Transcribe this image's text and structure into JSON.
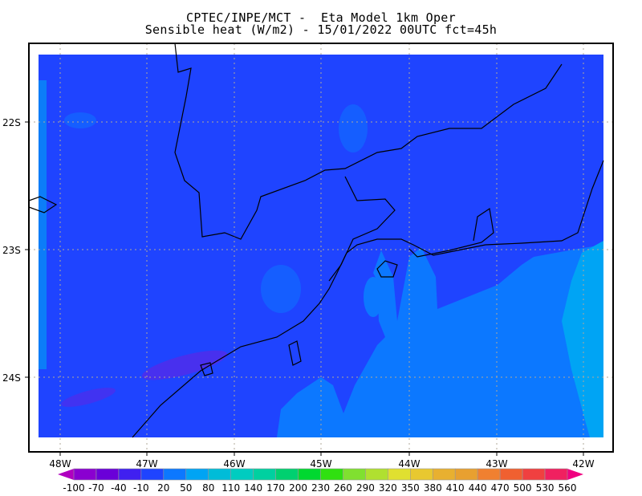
{
  "header": {
    "line1": "CPTEC/INPE/MCT -  Eta Model 1km Oper",
    "line2": "Sensible heat (W/m2) - 15/01/2022 00UTC fct=45h"
  },
  "map": {
    "variable": "Sensible heat",
    "units": "W/m2",
    "lon_labels": [
      "48W",
      "47W",
      "46W",
      "45W",
      "44W",
      "43W",
      "42W"
    ],
    "lat_labels": [
      "22S",
      "23S",
      "24S"
    ],
    "field_colors": {
      "dominant": "#1f44ff",
      "ocean_south": "#0c78ff",
      "ocean_east": "#00a4f4",
      "hotspots": "#6a20e0"
    },
    "coastline_color": "#000000",
    "grid_color": "#b0a898"
  },
  "colorbar": {
    "labels": [
      "-100",
      "-70",
      "-40",
      "-10",
      "20",
      "50",
      "80",
      "110",
      "140",
      "170",
      "200",
      "230",
      "260",
      "290",
      "320",
      "350",
      "380",
      "410",
      "440",
      "470",
      "500",
      "530",
      "560"
    ],
    "colors": [
      "#8a00d0",
      "#6a00d8",
      "#4020f0",
      "#1f44ff",
      "#0c78ff",
      "#00a4f4",
      "#00bcd8",
      "#00ccc0",
      "#00d0a0",
      "#00d070",
      "#00d830",
      "#30e010",
      "#80e030",
      "#b0e030",
      "#e0e030",
      "#e8c830",
      "#e8b030",
      "#e8a030",
      "#f08030",
      "#f06030",
      "#f04040",
      "#f02060"
    ],
    "under_color": "#b000c0",
    "over_color": "#f00080"
  }
}
